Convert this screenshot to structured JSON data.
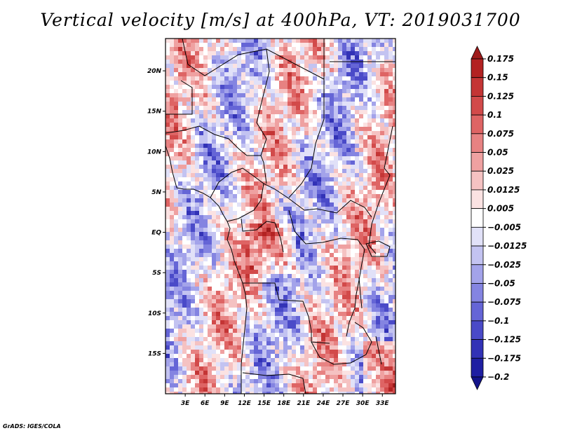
{
  "title": "Vertical velocity [m/s] at 400hPa, VT: 2019031700",
  "credit": "GrADS: IGES/COLA",
  "map": {
    "variable": "Vertical velocity",
    "units": "m/s",
    "level": "400hPa",
    "valid_time": "2019031700",
    "lon_range": [
      0,
      35
    ],
    "lat_range": [
      -20,
      24
    ],
    "x_ticks": [
      "3E",
      "6E",
      "9E",
      "12E",
      "15E",
      "18E",
      "21E",
      "24E",
      "27E",
      "30E",
      "33E"
    ],
    "x_tick_values": [
      3,
      6,
      9,
      12,
      15,
      18,
      21,
      24,
      27,
      30,
      33
    ],
    "y_ticks": [
      "20N",
      "15N",
      "10N",
      "5N",
      "EQ",
      "5S",
      "10S",
      "15S"
    ],
    "y_tick_values": [
      20,
      15,
      10,
      5,
      0,
      -5,
      -10,
      -15
    ]
  },
  "colorbar": {
    "labels": [
      "0.175",
      "0.15",
      "0.125",
      "0.1",
      "0.075",
      "0.05",
      "0.025",
      "0.0125",
      "0.005",
      "−0.005",
      "−0.0125",
      "−0.025",
      "−0.05",
      "−0.075",
      "−0.1",
      "−0.125",
      "−0.175",
      "−0.2"
    ],
    "colors": [
      "#9e1b1b",
      "#b32222",
      "#c43535",
      "#d24a4a",
      "#de6464",
      "#e78282",
      "#efa1a1",
      "#f5c2c2",
      "#fbe2e2",
      "#ffffff",
      "#e1e1f8",
      "#c3c3f1",
      "#a3a3ea",
      "#8484e1",
      "#6565d6",
      "#4a4ac8",
      "#3232b6",
      "#1f1fa2",
      "#14148a"
    ]
  }
}
